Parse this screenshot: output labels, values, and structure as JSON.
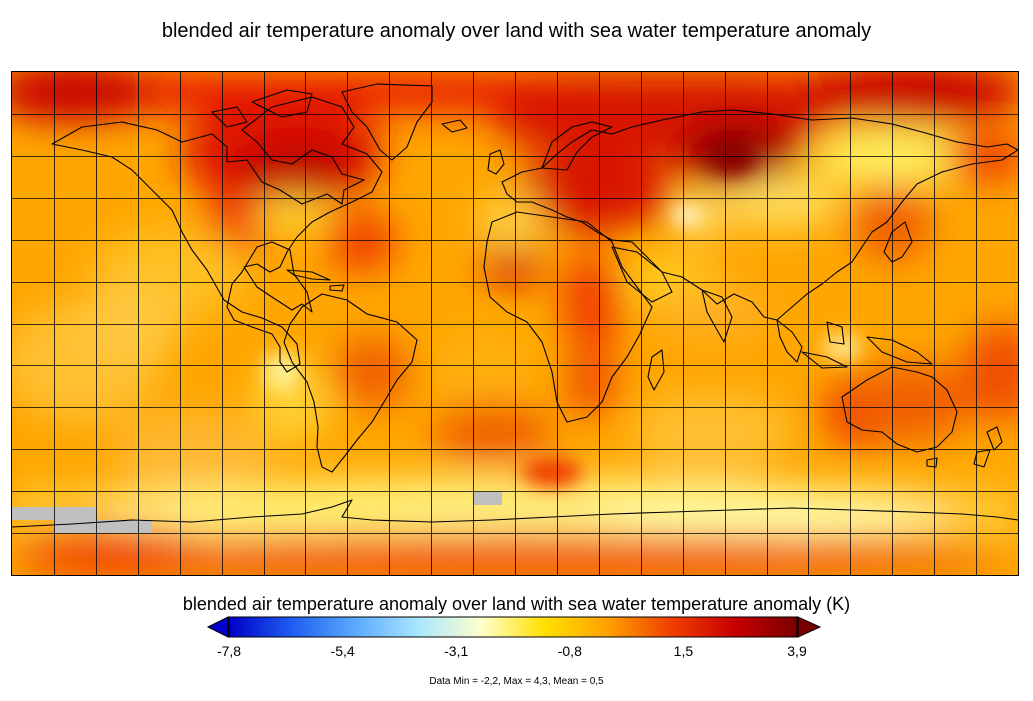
{
  "title": "blended air temperature anomaly over land with sea water temperature anomaly",
  "colorbar": {
    "label": "blended air temperature anomaly over land with sea water temperature anomaly (K)",
    "ticks": [
      "-7,8",
      "-5,4",
      "-3,1",
      "-0,8",
      "1,5",
      "3,9"
    ],
    "min": -7.8,
    "max": 3.9,
    "colors": [
      "#0000c8",
      "#1e5ef0",
      "#5aaaff",
      "#aae6ff",
      "#ffffcc",
      "#ffe000",
      "#ffa000",
      "#f04000",
      "#c80000",
      "#7a0000"
    ],
    "under_color": "#0000c8",
    "over_color": "#7a0000"
  },
  "stats": "Data Min = -2,2, Max = 4,3, Mean = 0,5",
  "map": {
    "base_color": "#ffa600",
    "missing_color": "#c0c0c0",
    "coastline_color": "#000000",
    "gridline_color": "#000000"
  }
}
